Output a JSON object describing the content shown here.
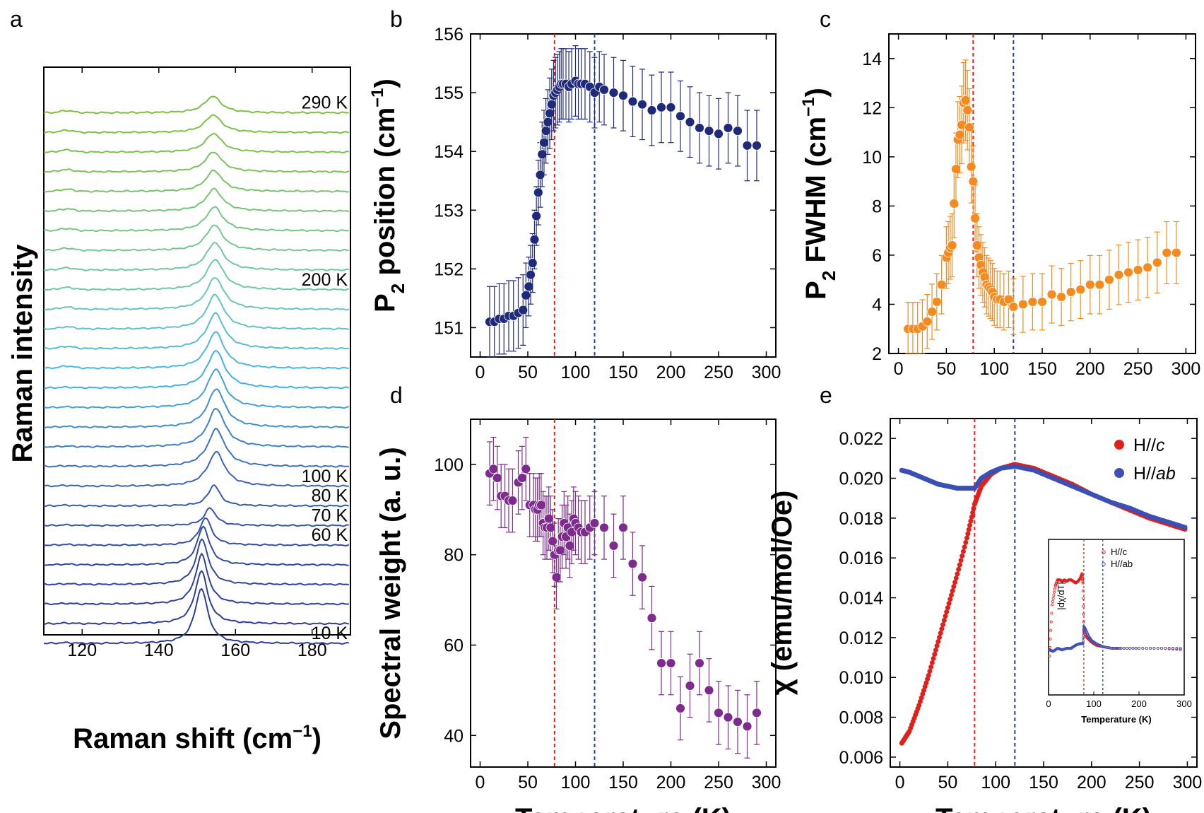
{
  "figure": {
    "panels": [
      "a",
      "b",
      "c",
      "d",
      "e"
    ]
  },
  "chart_data": [
    {
      "panel": "a",
      "type": "line",
      "xlabel": "Raman shift (cm⁻¹)",
      "ylabel": "Raman intensity",
      "xlim": [
        110,
        190
      ],
      "xticks": [
        120,
        140,
        160,
        180
      ],
      "temperature_labels": [
        "290 K",
        "200 K",
        "100 K",
        "80 K",
        "70 K",
        "60 K",
        "10 K"
      ],
      "series": [
        {
          "T": 10,
          "peak_position": 151.1,
          "peak_height": 1.0,
          "color": "#2c3e97"
        },
        {
          "T": 20,
          "peak_position": 151.1,
          "peak_height": 0.96,
          "color": "#2c3e97"
        },
        {
          "T": 30,
          "peak_position": 151.2,
          "peak_height": 0.9,
          "color": "#2d4299"
        },
        {
          "T": 40,
          "peak_position": 151.3,
          "peak_height": 0.82,
          "color": "#2e469c"
        },
        {
          "T": 50,
          "peak_position": 151.6,
          "peak_height": 0.7,
          "color": "#2f4a9f"
        },
        {
          "T": 60,
          "peak_position": 152.2,
          "peak_height": 0.5,
          "color": "#314fa3"
        },
        {
          "T": 70,
          "peak_position": 153.4,
          "peak_height": 0.32,
          "color": "#3355a8"
        },
        {
          "T": 80,
          "peak_position": 154.4,
          "peak_height": 0.38,
          "color": "#355bad"
        },
        {
          "T": 100,
          "peak_position": 155.0,
          "peak_height": 0.62,
          "color": "#3a66b4"
        },
        {
          "T": 110,
          "peak_position": 155.0,
          "peak_height": 0.68,
          "color": "#3d72bc"
        },
        {
          "T": 120,
          "peak_position": 155.0,
          "peak_height": 0.7,
          "color": "#3f80c6"
        },
        {
          "T": 130,
          "peak_position": 155.0,
          "peak_height": 0.7,
          "color": "#3f8fd0"
        },
        {
          "T": 140,
          "peak_position": 154.9,
          "peak_height": 0.7,
          "color": "#40a0da"
        },
        {
          "T": 150,
          "peak_position": 154.9,
          "peak_height": 0.68,
          "color": "#42b0e0"
        },
        {
          "T": 160,
          "peak_position": 154.8,
          "peak_height": 0.66,
          "color": "#4cb8db"
        },
        {
          "T": 170,
          "peak_position": 154.8,
          "peak_height": 0.64,
          "color": "#56bdd2"
        },
        {
          "T": 180,
          "peak_position": 154.7,
          "peak_height": 0.62,
          "color": "#60c2c8"
        },
        {
          "T": 190,
          "peak_position": 154.7,
          "peak_height": 0.58,
          "color": "#6ac5bd"
        },
        {
          "T": 200,
          "peak_position": 154.7,
          "peak_height": 0.55,
          "color": "#6fc6ae"
        },
        {
          "T": 210,
          "peak_position": 154.6,
          "peak_height": 0.5,
          "color": "#72c79f"
        },
        {
          "T": 220,
          "peak_position": 154.5,
          "peak_height": 0.46,
          "color": "#74c790"
        },
        {
          "T": 230,
          "peak_position": 154.5,
          "peak_height": 0.43,
          "color": "#75c682"
        },
        {
          "T": 240,
          "peak_position": 154.4,
          "peak_height": 0.4,
          "color": "#76c574"
        },
        {
          "T": 250,
          "peak_position": 154.4,
          "peak_height": 0.38,
          "color": "#77c466"
        },
        {
          "T": 260,
          "peak_position": 154.3,
          "peak_height": 0.36,
          "color": "#78c35a"
        },
        {
          "T": 270,
          "peak_position": 154.3,
          "peak_height": 0.34,
          "color": "#79c250"
        },
        {
          "T": 280,
          "peak_position": 154.2,
          "peak_height": 0.32,
          "color": "#7ac148"
        },
        {
          "T": 290,
          "peak_position": 154.1,
          "peak_height": 0.3,
          "color": "#7bc043"
        }
      ]
    },
    {
      "panel": "b",
      "type": "scatter",
      "xlabel": "",
      "ylabel": "P2 position (cm⁻¹)",
      "xlim": [
        -10,
        310
      ],
      "ylim": [
        150.5,
        156
      ],
      "xticks": [
        0,
        50,
        100,
        150,
        200,
        250,
        300
      ],
      "yticks": [
        151,
        152,
        153,
        154,
        155,
        156
      ],
      "vlines": [
        {
          "x": 78,
          "color": "#e0201b"
        },
        {
          "x": 120,
          "color": "#2a3f9e"
        }
      ],
      "marker_color": "#1f2a7a",
      "x": [
        10,
        15,
        20,
        25,
        30,
        35,
        40,
        45,
        48,
        51,
        53,
        55,
        57,
        59,
        61,
        63,
        65,
        67,
        69,
        71,
        73,
        75,
        77,
        79,
        81,
        83,
        85,
        87,
        90,
        93,
        96,
        100,
        103,
        106,
        110,
        115,
        120,
        125,
        130,
        140,
        150,
        160,
        170,
        180,
        190,
        200,
        210,
        220,
        230,
        240,
        250,
        260,
        270,
        280,
        290
      ],
      "y": [
        151.1,
        151.1,
        151.15,
        151.15,
        151.2,
        151.2,
        151.25,
        151.3,
        151.55,
        151.7,
        151.9,
        152.1,
        152.5,
        152.9,
        153.3,
        153.6,
        153.95,
        154.15,
        154.35,
        154.5,
        154.65,
        154.8,
        154.95,
        155.0,
        155.05,
        155.1,
        155.15,
        155.15,
        155.15,
        155.1,
        155.15,
        155.2,
        155.15,
        155.15,
        155.15,
        155.1,
        155.0,
        155.1,
        155.05,
        155.0,
        154.95,
        154.85,
        154.8,
        154.7,
        154.75,
        154.75,
        154.6,
        154.5,
        154.4,
        154.35,
        154.3,
        154.4,
        154.35,
        154.1,
        154.1
      ],
      "yerr": [
        0.6,
        0.6,
        0.6,
        0.6,
        0.6,
        0.6,
        0.6,
        0.6,
        0.55,
        0.5,
        0.5,
        0.5,
        0.5,
        0.5,
        0.55,
        0.55,
        0.55,
        0.55,
        0.55,
        0.55,
        0.6,
        0.6,
        0.6,
        0.6,
        0.6,
        0.6,
        0.6,
        0.6,
        0.6,
        0.6,
        0.6,
        0.6,
        0.6,
        0.6,
        0.6,
        0.6,
        0.6,
        0.6,
        0.6,
        0.6,
        0.6,
        0.6,
        0.6,
        0.6,
        0.6,
        0.6,
        0.6,
        0.6,
        0.6,
        0.6,
        0.6,
        0.6,
        0.6,
        0.6,
        0.6
      ]
    },
    {
      "panel": "c",
      "type": "scatter",
      "xlabel": "",
      "ylabel": "P2 FWHM (cm⁻¹)",
      "xlim": [
        -10,
        310
      ],
      "ylim": [
        2,
        15
      ],
      "xticks": [
        0,
        50,
        100,
        150,
        200,
        250,
        300
      ],
      "yticks": [
        2,
        4,
        6,
        8,
        10,
        12,
        14
      ],
      "vlines": [
        {
          "x": 78,
          "color": "#e0201b"
        },
        {
          "x": 120,
          "color": "#2a3f9e"
        }
      ],
      "marker_color": "#f58a1f",
      "x": [
        10,
        15,
        20,
        25,
        30,
        35,
        40,
        45,
        50,
        52,
        54,
        56,
        58,
        60,
        62,
        64,
        66,
        68,
        70,
        72,
        74,
        76,
        78,
        80,
        82,
        84,
        86,
        88,
        90,
        92,
        94,
        96,
        98,
        100,
        103,
        106,
        110,
        115,
        120,
        130,
        140,
        150,
        160,
        170,
        180,
        190,
        200,
        210,
        220,
        230,
        240,
        250,
        260,
        270,
        280,
        290
      ],
      "y": [
        3.0,
        3.0,
        3.0,
        3.1,
        3.3,
        3.7,
        4.1,
        4.8,
        5.9,
        6.1,
        6.3,
        6.4,
        8.1,
        9.5,
        10.7,
        10.9,
        11.3,
        12.2,
        12.3,
        11.9,
        11.2,
        9.6,
        9.0,
        7.5,
        6.4,
        5.9,
        5.6,
        5.3,
        5.1,
        4.8,
        4.7,
        4.6,
        4.5,
        4.3,
        4.2,
        4.2,
        4.1,
        4.2,
        3.9,
        4.0,
        4.1,
        4.1,
        4.4,
        4.3,
        4.5,
        4.6,
        4.8,
        4.8,
        5.0,
        5.2,
        5.3,
        5.4,
        5.5,
        5.7,
        6.1,
        6.1
      ]
    },
    {
      "panel": "d",
      "type": "scatter",
      "xlabel": "Temperature (K)",
      "ylabel": "Spectral weight (a. u.)",
      "xlim": [
        -10,
        310
      ],
      "ylim": [
        33,
        110
      ],
      "xticks": [
        0,
        50,
        100,
        150,
        200,
        250,
        300
      ],
      "yticks": [
        40,
        60,
        80,
        100
      ],
      "vlines": [
        {
          "x": 78,
          "color": "#e0201b"
        },
        {
          "x": 120,
          "color": "#2a3f9e"
        }
      ],
      "marker_color": "#7d2c8e",
      "x": [
        10,
        14,
        18,
        22,
        26,
        30,
        34,
        40,
        44,
        48,
        52,
        56,
        58,
        60,
        62,
        64,
        66,
        68,
        70,
        72,
        74,
        76,
        78,
        80,
        82,
        84,
        86,
        88,
        90,
        92,
        94,
        96,
        98,
        100,
        103,
        106,
        110,
        115,
        120,
        130,
        140,
        150,
        160,
        170,
        180,
        190,
        200,
        210,
        220,
        230,
        240,
        250,
        260,
        270,
        280,
        290
      ],
      "y": [
        98,
        99,
        97,
        93,
        93,
        92,
        92,
        96,
        97,
        99,
        91,
        91,
        90,
        90,
        91,
        91,
        87,
        86,
        86,
        88,
        86,
        83,
        80,
        75,
        81,
        81,
        84,
        87,
        84,
        86,
        82,
        85,
        88,
        87,
        86,
        85,
        85,
        86,
        87,
        86,
        82,
        86,
        78,
        75,
        66,
        56,
        56,
        46,
        51,
        56,
        50,
        45,
        44,
        43,
        42,
        45
      ],
      "yerr": [
        7,
        7,
        7,
        7,
        7,
        7,
        7,
        7,
        7,
        7,
        7,
        7,
        7,
        7,
        7,
        7,
        7,
        7,
        7,
        7,
        7,
        7,
        7,
        7,
        7,
        7,
        7,
        7,
        7,
        7,
        7,
        7,
        7,
        7,
        7,
        7,
        7,
        7,
        7,
        7,
        7,
        7,
        7,
        7,
        7,
        7,
        7,
        7,
        7,
        7,
        7,
        7,
        7,
        7,
        7,
        7
      ]
    },
    {
      "panel": "e",
      "type": "line",
      "xlabel": "Temperature (K)",
      "ylabel": "χ (emu/mol/Oe)",
      "xlim": [
        -10,
        310
      ],
      "ylim": [
        0.0055,
        0.023
      ],
      "xticks": [
        0,
        50,
        100,
        150,
        200,
        250,
        300
      ],
      "yticks": [
        0.006,
        0.008,
        0.01,
        0.012,
        0.014,
        0.016,
        0.018,
        0.02,
        0.022
      ],
      "vlines": [
        {
          "x": 78,
          "color": "#e0201b"
        },
        {
          "x": 120,
          "color": "#2a3f9e"
        }
      ],
      "legend_position": "top-right",
      "series": [
        {
          "name": "H//c",
          "legend_plain": "H//",
          "legend_italic": "c",
          "color": "#e0201b",
          "x": [
            2,
            10,
            20,
            30,
            40,
            50,
            60,
            70,
            78,
            85,
            95,
            105,
            120,
            140,
            160,
            180,
            200,
            220,
            240,
            260,
            280,
            300
          ],
          "y": [
            0.0067,
            0.0073,
            0.0086,
            0.0101,
            0.0118,
            0.0135,
            0.0152,
            0.017,
            0.0187,
            0.0196,
            0.0202,
            0.0205,
            0.0207,
            0.0205,
            0.0201,
            0.0197,
            0.0192,
            0.0188,
            0.0184,
            0.018,
            0.0177,
            0.0174
          ]
        },
        {
          "name": "H//ab",
          "legend_plain": "H//",
          "legend_italic": "ab",
          "color": "#3b4fb5",
          "x": [
            2,
            10,
            20,
            30,
            40,
            50,
            60,
            70,
            78,
            85,
            95,
            105,
            120,
            140,
            160,
            180,
            200,
            220,
            240,
            260,
            280,
            300
          ],
          "y": [
            0.0204,
            0.0203,
            0.0201,
            0.0199,
            0.0197,
            0.0196,
            0.0195,
            0.0195,
            0.0195,
            0.02,
            0.0203,
            0.0205,
            0.0206,
            0.0204,
            0.02,
            0.0196,
            0.0192,
            0.0188,
            0.0185,
            0.0181,
            0.0178,
            0.0175
          ]
        }
      ],
      "inset": {
        "type": "scatter",
        "xlabel": "Temperature (K)",
        "ylabel": "|dχ/dT|",
        "xlim": [
          0,
          300
        ],
        "ylim": [
          0,
          1
        ],
        "xticks": [
          0,
          100,
          200,
          300
        ],
        "vlines": [
          {
            "x": 78,
            "color": "#e0201b"
          },
          {
            "x": 120,
            "color": "#2a3f9e"
          }
        ],
        "legend": [
          "H//c",
          "H//ab"
        ],
        "series": [
          {
            "name": "H//c",
            "color": "#e0201b",
            "x": [
              2,
              8,
              15,
              20,
              25,
              30,
              35,
              40,
              45,
              50,
              55,
              60,
              65,
              70,
              74,
              76,
              78,
              82,
              88,
              95,
              105,
              120,
              140,
              160,
              200,
              250,
              300
            ],
            "y": [
              0.25,
              0.58,
              0.7,
              0.74,
              0.74,
              0.73,
              0.74,
              0.73,
              0.74,
              0.74,
              0.73,
              0.72,
              0.73,
              0.75,
              0.78,
              0.72,
              0.42,
              0.38,
              0.36,
              0.34,
              0.32,
              0.31,
              0.3,
              0.3,
              0.3,
              0.3,
              0.29
            ]
          },
          {
            "name": "H//ab",
            "color": "#3b4fb5",
            "x": [
              2,
              10,
              20,
              30,
              40,
              50,
              60,
              70,
              76,
              78,
              82,
              88,
              95,
              105,
              120,
              140,
              160,
              200,
              250,
              300
            ],
            "y": [
              0.29,
              0.28,
              0.3,
              0.29,
              0.3,
              0.3,
              0.32,
              0.33,
              0.33,
              0.44,
              0.42,
              0.38,
              0.35,
              0.33,
              0.31,
              0.3,
              0.3,
              0.3,
              0.3,
              0.3
            ]
          }
        ]
      }
    }
  ]
}
